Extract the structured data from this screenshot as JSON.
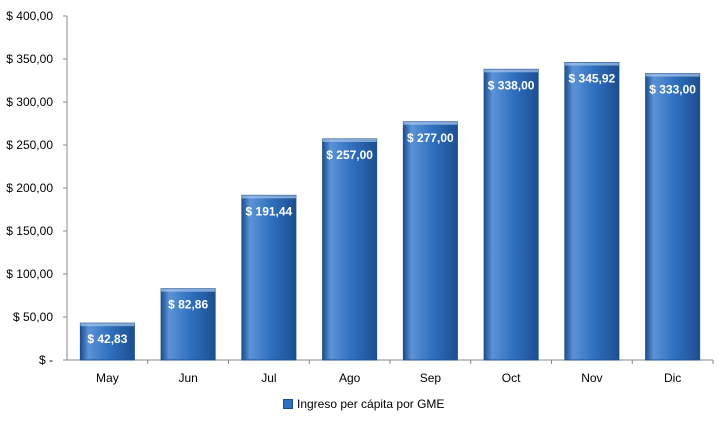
{
  "chart_data": {
    "type": "bar",
    "categories": [
      "May",
      "Jun",
      "Jul",
      "Ago",
      "Sep",
      "Oct",
      "Nov",
      "Dic"
    ],
    "series": [
      {
        "name": "Ingreso per cápita por GME",
        "values": [
          42.83,
          82.86,
          191.44,
          257.0,
          277.0,
          338.0,
          345.92,
          333.0
        ],
        "labels": [
          "$ 42,83",
          "$ 82,86",
          "$ 191,44",
          "$ 257,00",
          "$ 277,00",
          "$ 338,00",
          "$ 345,92",
          "$ 333,00"
        ]
      }
    ],
    "ylim": [
      0,
      400
    ],
    "yticks": [
      0,
      50,
      100,
      150,
      200,
      250,
      300,
      350,
      400
    ],
    "ytick_labels": [
      "$ -",
      "$ 50,00",
      "$ 100,00",
      "$ 150,00",
      "$ 200,00",
      "$ 250,00",
      "$ 300,00",
      "$ 350,00",
      "$ 400,00"
    ],
    "legend_position": "bottom",
    "grid": false,
    "colors": {
      "bar": "#2e6fbf",
      "bar_dark": "#1d4f8f",
      "bar_light": "#5b93d6"
    }
  }
}
